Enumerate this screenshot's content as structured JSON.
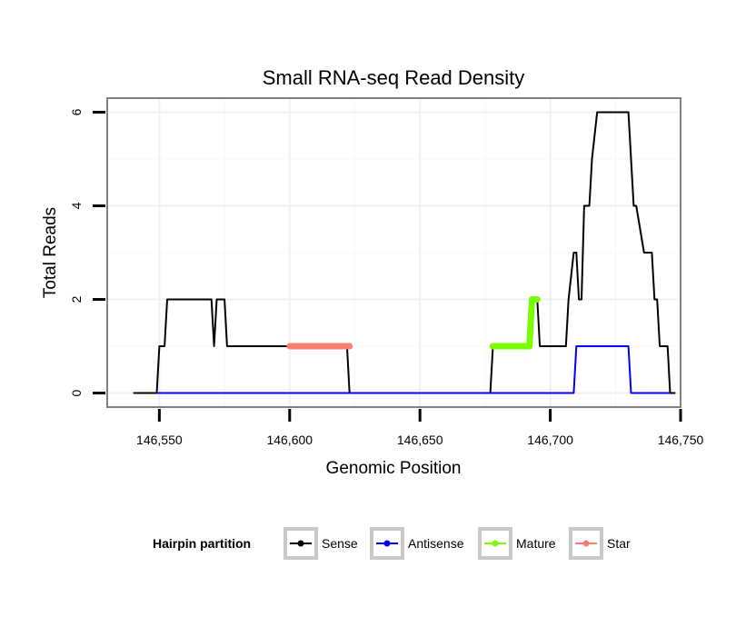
{
  "chart_data": {
    "type": "line",
    "title": "Small RNA-seq Read Density",
    "xlabel": "Genomic Position",
    "ylabel": "Total Reads",
    "xlim": [
      146530,
      146750
    ],
    "ylim": [
      -0.3,
      6.3
    ],
    "x_ticks": [
      {
        "value": 146550,
        "label": "146,550"
      },
      {
        "value": 146600,
        "label": "146,600"
      },
      {
        "value": 146650,
        "label": "146,650"
      },
      {
        "value": 146700,
        "label": "146,700"
      },
      {
        "value": 146750,
        "label": "146,750"
      }
    ],
    "y_ticks": [
      {
        "value": 0,
        "label": "0"
      },
      {
        "value": 2,
        "label": "2"
      },
      {
        "value": 4,
        "label": "4"
      },
      {
        "value": 6,
        "label": "6"
      }
    ],
    "grid": true,
    "legend": {
      "title": "Hairpin partition",
      "position": "bottom"
    },
    "series": [
      {
        "name": "Sense",
        "color": "#000000",
        "x": [
          146540,
          146549,
          146550,
          146552,
          146553,
          146570,
          146571,
          146572,
          146575,
          146576,
          146600,
          146622,
          146623,
          146624,
          146677,
          146678,
          146692,
          146693,
          146694,
          146695,
          146696,
          146697,
          146698,
          146706,
          146707,
          146709,
          146710,
          146711,
          146712,
          146713,
          146715,
          146716,
          146718,
          146719,
          146720,
          146721,
          146722,
          146730,
          146731,
          146732,
          146733,
          146736,
          146737,
          146739,
          146740,
          146741,
          146742,
          146745,
          146746,
          146747,
          146748
        ],
        "y": [
          0,
          0,
          1,
          1,
          2,
          2,
          1,
          2,
          2,
          1,
          1,
          1,
          0,
          0,
          0,
          1,
          1,
          2,
          2,
          2,
          1,
          1,
          1,
          1,
          2,
          3,
          3,
          2,
          2,
          4,
          4,
          5,
          6,
          6,
          6,
          6,
          6,
          6,
          5,
          4,
          4,
          3,
          3,
          3,
          2,
          2,
          1,
          1,
          0,
          0,
          0
        ]
      },
      {
        "name": "Antisense",
        "color": "#0000ff",
        "x": [
          146549,
          146709,
          146710,
          146730,
          146731,
          146746
        ],
        "y": [
          0,
          0,
          1,
          1,
          0,
          0
        ]
      },
      {
        "name": "Mature",
        "color": "#7cfc00",
        "x": [
          146678,
          146692,
          146693,
          146695
        ],
        "y": [
          1,
          1,
          2,
          2
        ]
      },
      {
        "name": "Star",
        "color": "#fa8072",
        "x": [
          146600,
          146623
        ],
        "y": [
          1,
          1
        ]
      }
    ]
  }
}
